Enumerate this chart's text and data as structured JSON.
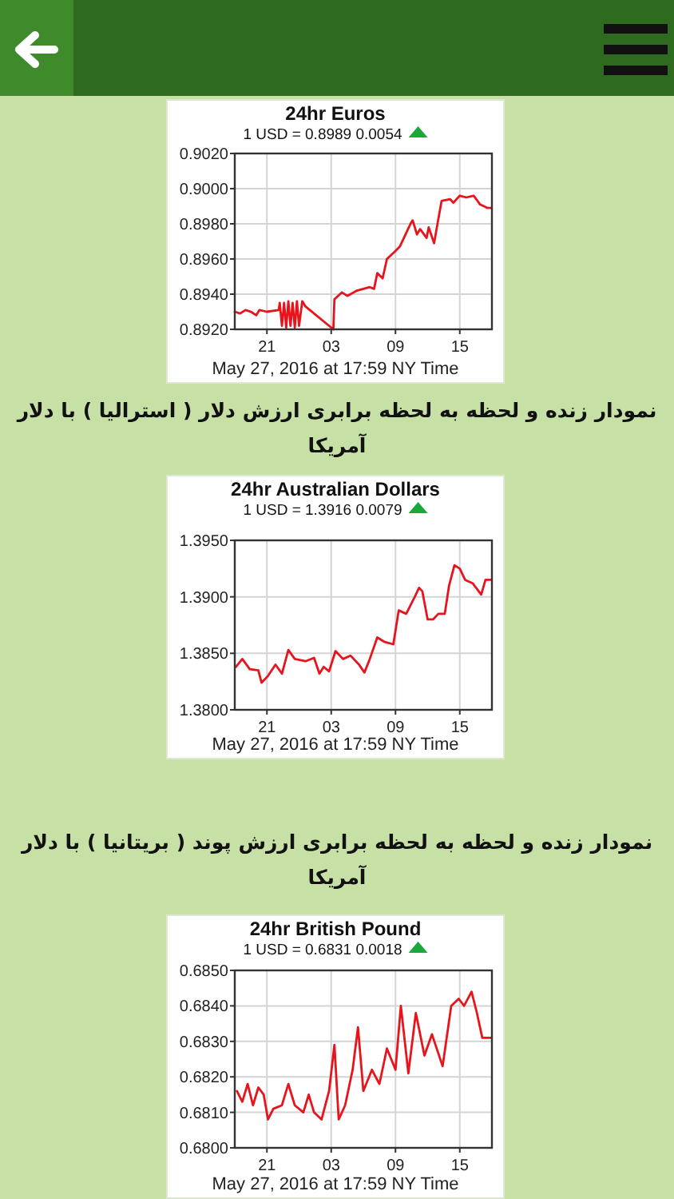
{
  "chart_data": [
    {
      "type": "line",
      "title": "24hr Euros",
      "subtitle": "1 USD = 0.8989  0.0054",
      "xlabel": "May 27, 2016 at 17:59 NY Time",
      "grid": true,
      "marker": "none",
      "line_style": "solid",
      "xlim": [
        "2016-05-26T18:00",
        "2016-05-27T18:00"
      ],
      "xticks": [
        {
          "value": "2016-05-26T21:00",
          "label": "21"
        },
        {
          "value": "2016-05-27T03:00",
          "label": "03"
        },
        {
          "value": "2016-05-27T09:00",
          "label": "09"
        },
        {
          "value": "2016-05-27T15:00",
          "label": "15"
        }
      ],
      "ylim": [
        0.892,
        0.902
      ],
      "yticks": [
        {
          "value": 0.892,
          "label": "0.8920"
        },
        {
          "value": 0.894,
          "label": "0.8940"
        },
        {
          "value": 0.896,
          "label": "0.8960"
        },
        {
          "value": 0.898,
          "label": "0.8980"
        },
        {
          "value": 0.9,
          "label": "0.9000"
        },
        {
          "value": 0.902,
          "label": "0.9020"
        }
      ],
      "series": [
        {
          "color": "#e8141c",
          "x": [
            "2016-05-26T18:00",
            "2016-05-26T18:30",
            "2016-05-26T19:00",
            "2016-05-26T19:30",
            "2016-05-26T20:00",
            "2016-05-26T20:18",
            "2016-05-26T21:00",
            "2016-05-26T22:06",
            "2016-05-26T22:12",
            "2016-05-26T22:24",
            "2016-05-26T22:36",
            "2016-05-26T22:48",
            "2016-05-26T23:00",
            "2016-05-26T23:12",
            "2016-05-26T23:24",
            "2016-05-26T23:36",
            "2016-05-26T23:48",
            "2016-05-27T00:00",
            "2016-05-27T00:18",
            "2016-05-27T00:36",
            "2016-05-27T03:12",
            "2016-05-27T03:18",
            "2016-05-27T04:00",
            "2016-05-27T04:30",
            "2016-05-27T05:24",
            "2016-05-27T06:36",
            "2016-05-27T07:00",
            "2016-05-27T07:18",
            "2016-05-27T07:48",
            "2016-05-27T08:12",
            "2016-05-27T08:54",
            "2016-05-27T09:24",
            "2016-05-27T10:24",
            "2016-05-27T10:36",
            "2016-05-27T11:00",
            "2016-05-27T11:18",
            "2016-05-27T11:54",
            "2016-05-27T12:06",
            "2016-05-27T12:36",
            "2016-05-27T13:18",
            "2016-05-27T14:06",
            "2016-05-27T14:24",
            "2016-05-27T15:00",
            "2016-05-27T15:36",
            "2016-05-27T16:18",
            "2016-05-27T16:54",
            "2016-05-27T17:36",
            "2016-05-27T17:59"
          ],
          "values": [
            0.893,
            0.8929,
            0.8931,
            0.893,
            0.8928,
            0.8931,
            0.893,
            0.8931,
            0.8935,
            0.8922,
            0.8935,
            0.8921,
            0.8936,
            0.8922,
            0.8935,
            0.8921,
            0.8936,
            0.8922,
            0.8936,
            0.8933,
            0.892,
            0.8937,
            0.8941,
            0.8939,
            0.8942,
            0.8944,
            0.8943,
            0.8952,
            0.8949,
            0.896,
            0.8964,
            0.8967,
            0.898,
            0.8982,
            0.8974,
            0.8977,
            0.8972,
            0.8978,
            0.8969,
            0.8993,
            0.8994,
            0.8992,
            0.8996,
            0.8995,
            0.8996,
            0.8991,
            0.8989,
            0.8989
          ]
        }
      ]
    },
    {
      "type": "line",
      "title": "24hr Australian Dollars",
      "subtitle": "1 USD = 1.3916  0.0079",
      "xlabel": "May 27, 2016 at 17:59 NY Time",
      "grid": true,
      "marker": "none",
      "line_style": "solid",
      "annotations": [
        "نمودار زنده و لحظه به لحظه برابری ارزش دلار ( استرالیا ) با دلار آمریکا"
      ],
      "xlim": [
        "2016-05-26T18:00",
        "2016-05-27T18:00"
      ],
      "xticks": [
        {
          "value": "2016-05-26T21:00",
          "label": "21"
        },
        {
          "value": "2016-05-27T03:00",
          "label": "03"
        },
        {
          "value": "2016-05-27T09:00",
          "label": "09"
        },
        {
          "value": "2016-05-27T15:00",
          "label": "15"
        }
      ],
      "ylim": [
        1.38,
        1.395
      ],
      "yticks": [
        {
          "value": 1.38,
          "label": "1.3800"
        },
        {
          "value": 1.385,
          "label": "1.3850"
        },
        {
          "value": 1.39,
          "label": "1.3900"
        },
        {
          "value": 1.395,
          "label": "1.3950"
        }
      ],
      "series": [
        {
          "color": "#e8141c",
          "x": [
            "2016-05-26T18:06",
            "2016-05-26T18:42",
            "2016-05-26T19:24",
            "2016-05-26T20:12",
            "2016-05-26T20:30",
            "2016-05-26T21:06",
            "2016-05-26T21:48",
            "2016-05-26T22:24",
            "2016-05-26T23:00",
            "2016-05-26T23:36",
            "2016-05-27T00:36",
            "2016-05-27T01:24",
            "2016-05-27T01:54",
            "2016-05-27T02:18",
            "2016-05-27T02:48",
            "2016-05-27T03:24",
            "2016-05-27T04:06",
            "2016-05-27T04:48",
            "2016-05-27T05:36",
            "2016-05-27T06:06",
            "2016-05-27T06:36",
            "2016-05-27T07:18",
            "2016-05-27T08:00",
            "2016-05-27T08:48",
            "2016-05-27T09:18",
            "2016-05-27T10:00",
            "2016-05-27T10:48",
            "2016-05-27T11:12",
            "2016-05-27T11:30",
            "2016-05-27T12:00",
            "2016-05-27T12:30",
            "2016-05-27T13:00",
            "2016-05-27T13:36",
            "2016-05-27T14:00",
            "2016-05-27T14:30",
            "2016-05-27T15:00",
            "2016-05-27T15:30",
            "2016-05-27T16:12",
            "2016-05-27T17:00",
            "2016-05-27T17:24",
            "2016-05-27T17:59"
          ],
          "values": [
            1.3838,
            1.3845,
            1.3836,
            1.3835,
            1.3824,
            1.383,
            1.384,
            1.3832,
            1.3853,
            1.3845,
            1.3843,
            1.3846,
            1.3832,
            1.3838,
            1.3834,
            1.3852,
            1.3845,
            1.3848,
            1.384,
            1.3833,
            1.3845,
            1.3864,
            1.386,
            1.3858,
            1.3888,
            1.3885,
            1.39,
            1.3908,
            1.3905,
            1.388,
            1.388,
            1.3885,
            1.3885,
            1.391,
            1.3928,
            1.3925,
            1.3915,
            1.3912,
            1.3902,
            1.3915,
            1.3915
          ]
        }
      ]
    },
    {
      "type": "line",
      "title": "24hr British Pound",
      "subtitle": "1 USD = 0.6831  0.0018",
      "xlabel": "May 27, 2016 at 17:59 NY Time",
      "grid": true,
      "marker": "none",
      "line_style": "solid",
      "annotations": [
        "نمودار زنده و لحظه به لحظه برابری ارزش پوند ( بریتانیا ) با دلار آمریکا"
      ],
      "xlim": [
        "2016-05-26T18:00",
        "2016-05-27T18:00"
      ],
      "xticks": [
        {
          "value": "2016-05-26T21:00",
          "label": "21"
        },
        {
          "value": "2016-05-27T03:00",
          "label": "03"
        },
        {
          "value": "2016-05-27T09:00",
          "label": "09"
        },
        {
          "value": "2016-05-27T15:00",
          "label": "15"
        }
      ],
      "ylim": [
        0.68,
        0.685
      ],
      "yticks": [
        {
          "value": 0.68,
          "label": "0.6800"
        },
        {
          "value": 0.681,
          "label": "0.6810"
        },
        {
          "value": 0.682,
          "label": "0.6820"
        },
        {
          "value": 0.683,
          "label": "0.6830"
        },
        {
          "value": 0.684,
          "label": "0.6840"
        },
        {
          "value": 0.685,
          "label": "0.6850"
        }
      ],
      "series": [
        {
          "color": "#e8141c",
          "x": [
            "2016-05-26T18:12",
            "2016-05-26T18:42",
            "2016-05-26T19:12",
            "2016-05-26T19:42",
            "2016-05-26T20:12",
            "2016-05-26T20:42",
            "2016-05-26T21:06",
            "2016-05-26T21:36",
            "2016-05-26T22:24",
            "2016-05-26T23:00",
            "2016-05-26T23:36",
            "2016-05-27T00:24",
            "2016-05-27T00:54",
            "2016-05-27T01:24",
            "2016-05-27T02:06",
            "2016-05-27T02:48",
            "2016-05-27T03:18",
            "2016-05-27T03:42",
            "2016-05-27T04:18",
            "2016-05-27T05:00",
            "2016-05-27T05:30",
            "2016-05-27T06:00",
            "2016-05-27T06:48",
            "2016-05-27T07:30",
            "2016-05-27T08:12",
            "2016-05-27T09:00",
            "2016-05-27T09:30",
            "2016-05-27T10:12",
            "2016-05-27T10:54",
            "2016-05-27T11:42",
            "2016-05-27T12:24",
            "2016-05-27T13:24",
            "2016-05-27T14:12",
            "2016-05-27T14:54",
            "2016-05-27T15:24",
            "2016-05-27T16:06",
            "2016-05-27T16:36",
            "2016-05-27T17:06",
            "2016-05-27T17:59"
          ],
          "values": [
            0.6816,
            0.6813,
            0.6818,
            0.6812,
            0.6817,
            0.6815,
            0.6808,
            0.6811,
            0.6812,
            0.6818,
            0.6812,
            0.681,
            0.6815,
            0.681,
            0.6808,
            0.6816,
            0.6829,
            0.6808,
            0.6812,
            0.6822,
            0.6834,
            0.6816,
            0.6822,
            0.6818,
            0.6828,
            0.6822,
            0.684,
            0.6821,
            0.6838,
            0.6826,
            0.6832,
            0.6823,
            0.684,
            0.6842,
            0.684,
            0.6844,
            0.6838,
            0.6831,
            0.6831
          ]
        }
      ]
    }
  ]
}
